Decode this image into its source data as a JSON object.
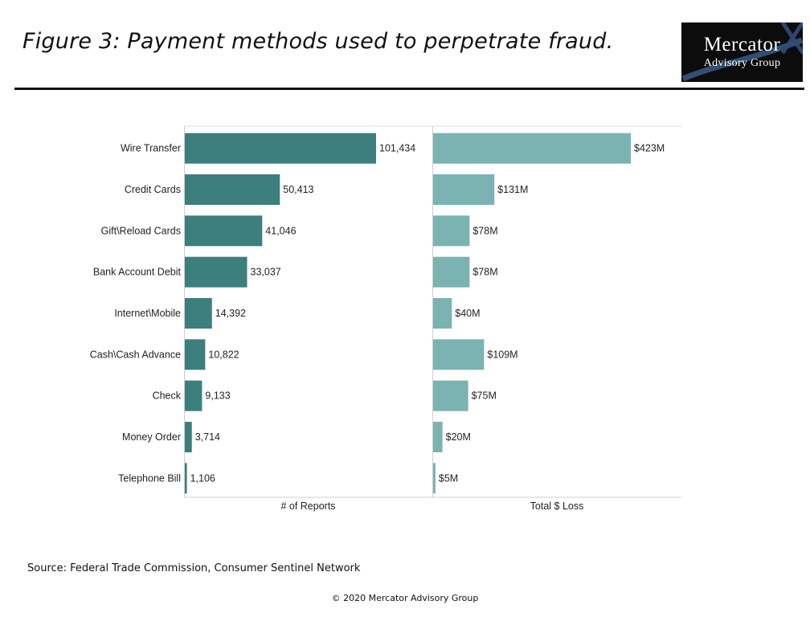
{
  "header": {
    "title": "Figure 3: Payment methods used to perpetrate fraud."
  },
  "logo": {
    "line1": "Mercator",
    "line2": "Advisory Group"
  },
  "chart_data": {
    "type": "bar",
    "orientation": "horizontal",
    "categories": [
      "Wire Transfer",
      "Credit Cards",
      "Gift\\Reload Cards",
      "Bank Account Debit",
      "Internet\\Mobile",
      "Cash\\Cash Advance",
      "Check",
      "Money Order",
      "Telephone Bill"
    ],
    "panels": [
      {
        "name": "# of Reports",
        "xlabel": "# of Reports",
        "values": [
          101434,
          50413,
          41046,
          33037,
          14392,
          10822,
          9133,
          3714,
          1106
        ],
        "labels": [
          "101,434",
          "50,413",
          "41,046",
          "33,037",
          "14,392",
          "10,822",
          "9,133",
          "3,714",
          "1,106"
        ],
        "xlim": [
          0,
          101434
        ],
        "color": "#3d7f7c"
      },
      {
        "name": "Total $ Loss",
        "xlabel": "Total $ Loss",
        "values": [
          423,
          131,
          78,
          78,
          40,
          109,
          75,
          20,
          5
        ],
        "labels": [
          "$423M",
          "$131M",
          "$78M",
          "$78M",
          "$40M",
          "$109M",
          "$75M",
          "$20M",
          "$5M"
        ],
        "xlim": [
          0,
          423
        ],
        "unit": "$M",
        "color": "#7ab3b1"
      }
    ],
    "grid": false,
    "legend": "none"
  },
  "footer": {
    "source": "Source: Federal Trade Commission, Consumer Sentinel Network",
    "copyright": "© 2020 Mercator Advisory Group"
  }
}
